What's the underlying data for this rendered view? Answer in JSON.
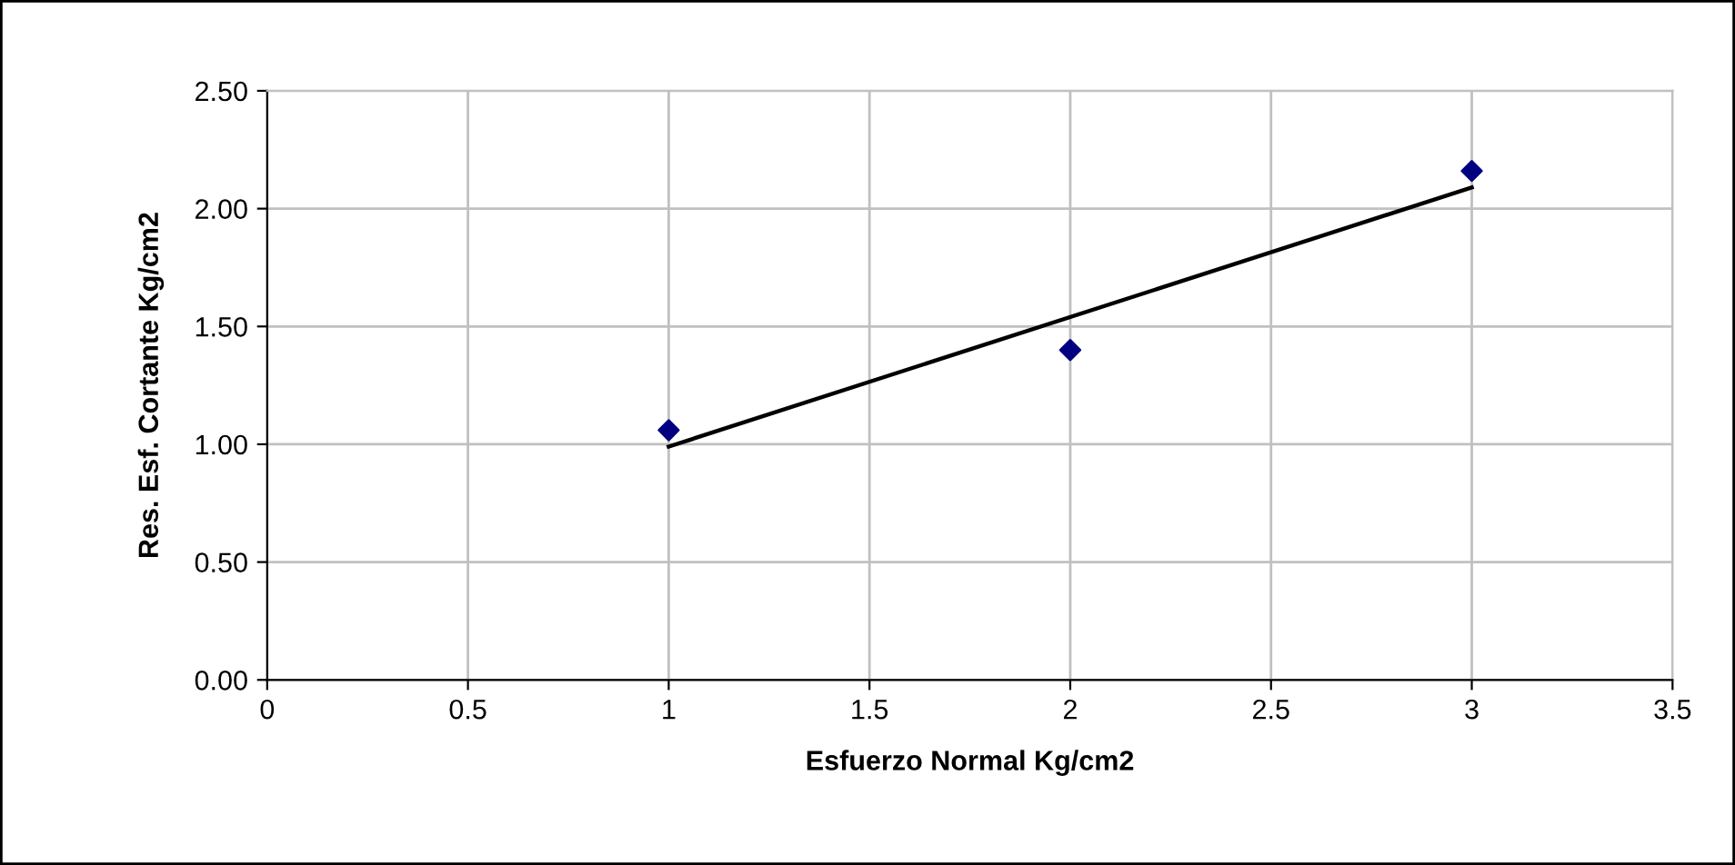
{
  "chart_data": {
    "type": "scatter",
    "xlabel": "Esfuerzo Normal Kg/cm2",
    "ylabel": "Res. Esf. Cortante Kg/cm2",
    "series": [
      {
        "color": "#000080",
        "marker": "diamond",
        "x": [
          1,
          2,
          3
        ],
        "values": [
          1.06,
          1.4,
          2.16
        ]
      },
      {
        "type": "line",
        "color": "#000000",
        "marker": "none",
        "line_style": "solid",
        "x": [
          1,
          3
        ],
        "values": [
          0.99,
          2.09
        ]
      }
    ],
    "xlim": [
      0,
      3.5
    ],
    "xticks": [
      0,
      0.5,
      1,
      1.5,
      2,
      2.5,
      3,
      3.5
    ],
    "ylim": [
      0,
      2.5
    ],
    "yticks": [
      {
        "value": 0,
        "label": "0.00"
      },
      {
        "value": 0.5,
        "label": "0.50"
      },
      {
        "value": 1,
        "label": "1.00"
      },
      {
        "value": 1.5,
        "label": "1.50"
      },
      {
        "value": 2,
        "label": "2.00"
      },
      {
        "value": 2.5,
        "label": "2.50"
      }
    ],
    "grid": true,
    "legend": false
  }
}
